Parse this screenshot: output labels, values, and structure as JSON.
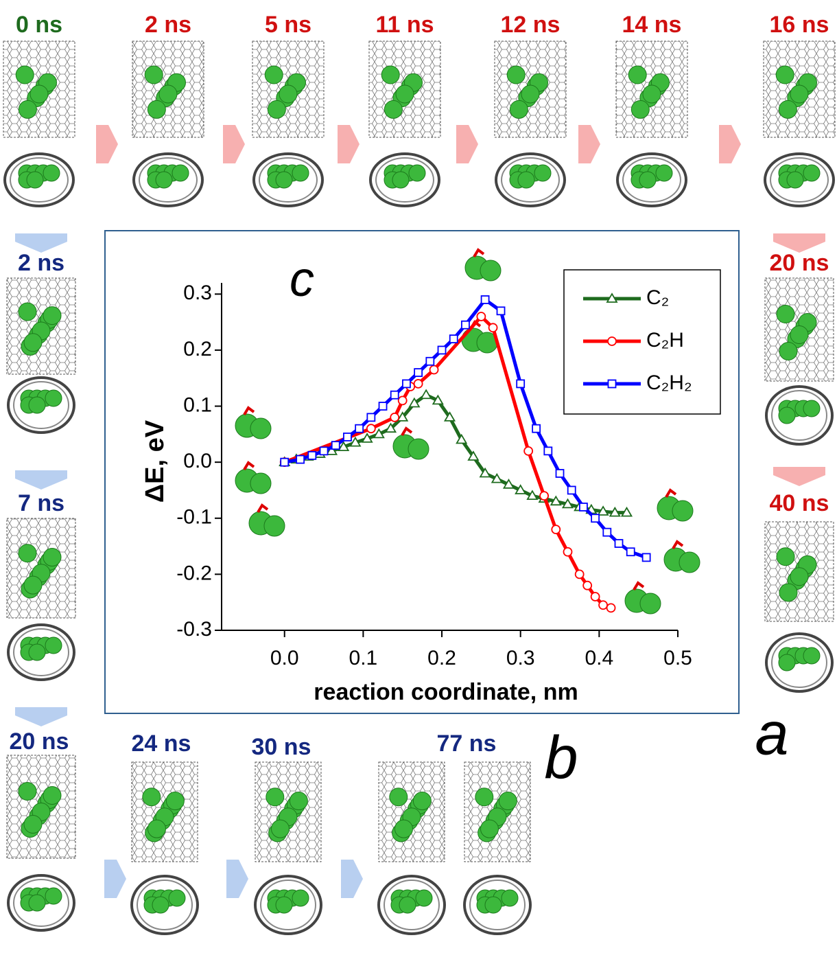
{
  "chart_data": {
    "type": "line",
    "annotation": "c",
    "x_label": "reaction coordinate, nm",
    "y_label": "ΔE, eV",
    "xlim": [
      -0.08,
      0.5
    ],
    "ylim": [
      -0.3,
      0.32
    ],
    "xticks": [
      {
        "value": 0,
        "label": "0.0"
      },
      0.1,
      0.2,
      0.3,
      0.4,
      0.5
    ],
    "yticks": [
      -0.3,
      -0.2,
      -0.1,
      {
        "value": 0,
        "label": "0.0"
      },
      0.1,
      0.2,
      0.3
    ],
    "legend": "upper right",
    "series": [
      {
        "name": "C₂",
        "color": "#1e6b1e",
        "marker": "triangle",
        "x": [
          0,
          0.015,
          0.03,
          0.045,
          0.06,
          0.075,
          0.09,
          0.105,
          0.12,
          0.135,
          0.15,
          0.165,
          0.18,
          0.195,
          0.21,
          0.225,
          0.24,
          0.255,
          0.27,
          0.285,
          0.3,
          0.315,
          0.33,
          0.345,
          0.36,
          0.375,
          0.39,
          0.405,
          0.42,
          0.435
        ],
        "values": [
          0,
          0.005,
          0.01,
          0.015,
          0.02,
          0.027,
          0.035,
          0.042,
          0.05,
          0.06,
          0.08,
          0.105,
          0.12,
          0.11,
          0.08,
          0.04,
          0.01,
          -0.02,
          -0.03,
          -0.04,
          -0.05,
          -0.06,
          -0.065,
          -0.07,
          -0.075,
          -0.08,
          -0.085,
          -0.088,
          -0.09,
          -0.09
        ]
      },
      {
        "name": "C₂H",
        "color": "#ff0000",
        "marker": "circle",
        "x": [
          0,
          0.11,
          0.14,
          0.15,
          0.16,
          0.17,
          0.19,
          0.25,
          0.265,
          0.31,
          0.33,
          0.345,
          0.36,
          0.375,
          0.385,
          0.395,
          0.405,
          0.415
        ],
        "values": [
          0,
          0.06,
          0.08,
          0.11,
          0.135,
          0.14,
          0.165,
          0.26,
          0.24,
          0.02,
          -0.06,
          -0.12,
          -0.16,
          -0.2,
          -0.22,
          -0.24,
          -0.255,
          -0.26
        ]
      },
      {
        "name": "C₂H₂",
        "color": "#0000ff",
        "marker": "square",
        "x": [
          0,
          0.02,
          0.035,
          0.05,
          0.065,
          0.08,
          0.095,
          0.11,
          0.125,
          0.14,
          0.155,
          0.17,
          0.185,
          0.2,
          0.215,
          0.23,
          0.255,
          0.275,
          0.3,
          0.32,
          0.335,
          0.35,
          0.365,
          0.38,
          0.395,
          0.41,
          0.425,
          0.44,
          0.46
        ],
        "values": [
          0,
          0.005,
          0.012,
          0.02,
          0.03,
          0.045,
          0.06,
          0.08,
          0.1,
          0.12,
          0.14,
          0.16,
          0.18,
          0.2,
          0.22,
          0.245,
          0.29,
          0.27,
          0.14,
          0.06,
          0.02,
          -0.02,
          -0.05,
          -0.08,
          -0.1,
          -0.125,
          -0.145,
          -0.16,
          -0.17
        ]
      }
    ]
  },
  "time_labels": {
    "top": [
      "0 ns",
      "2 ns",
      "5 ns",
      "11 ns",
      "12 ns",
      "14 ns",
      "16 ns"
    ],
    "left": [
      "2 ns",
      "7 ns",
      "20 ns"
    ],
    "bottom": [
      "24 ns",
      "30 ns",
      "77 ns"
    ],
    "right": [
      "20 ns",
      "40 ns"
    ]
  },
  "panel_labels": [
    "a",
    "b"
  ]
}
